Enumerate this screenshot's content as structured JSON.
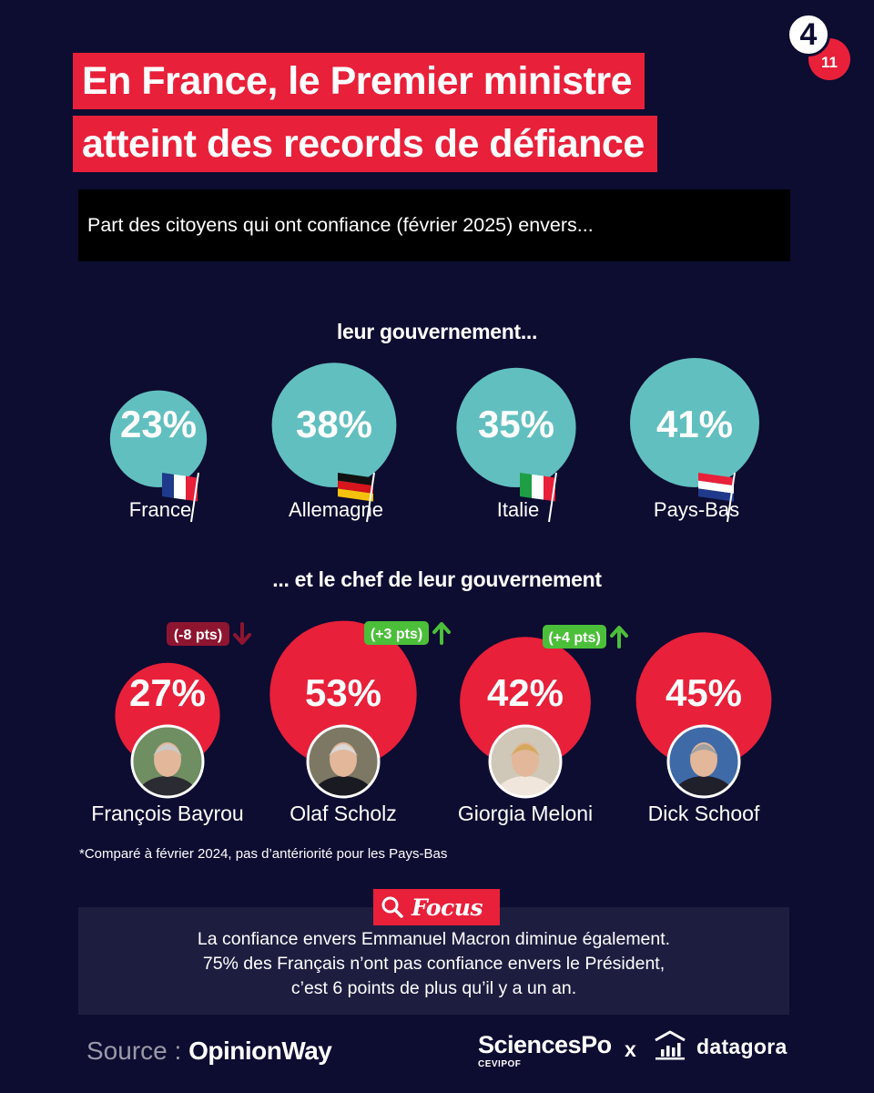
{
  "page": {
    "current": "4",
    "total": "11"
  },
  "title": {
    "line1": "En France, le Premier ministre",
    "line2": "atteint des records de défiance"
  },
  "subtitle": "Part des citoyens qui ont confiance (février 2025) envers...",
  "section_government": "leur gouvernement...",
  "section_leader": "... et le chef de leur gouvernement",
  "footnote": "*Comparé à février 2024, pas d’antériorité pour les Pays-Bas",
  "focus": {
    "label": "Focus",
    "line1": "La confiance envers Emmanuel Macron diminue également.",
    "line2": "75% des Français n’ont pas confiance envers le Président,",
    "line3": "c’est 6 points de plus qu’il y a un an."
  },
  "footer": {
    "source_prefix": "Source :",
    "source_org": "OpinionWay",
    "partner1": "SciencesPo",
    "partner1_sub": "CEVIPOF",
    "separator": "x",
    "partner2": "datagora"
  },
  "colors": {
    "background": "#0d0c31",
    "accent_red": "#e8203a",
    "teal": "#62bfbf",
    "green": "#4bbf39",
    "dark_red": "#8e1530"
  },
  "chart_data": [
    {
      "type": "bubble",
      "title": "leur gouvernement...",
      "unit": "%",
      "categories": [
        "France",
        "Allemagne",
        "Italie",
        "Pays-Bas"
      ],
      "values": [
        23,
        38,
        35,
        41
      ],
      "labels": [
        "23%",
        "38%",
        "35%",
        "41%"
      ],
      "flags": [
        "flag-france-icon",
        "flag-germany-icon",
        "flag-italy-icon",
        "flag-netherlands-icon"
      ]
    },
    {
      "type": "bubble",
      "title": "... et le chef de leur gouvernement",
      "unit": "%",
      "categories": [
        "France",
        "Allemagne",
        "Italie",
        "Pays-Bas"
      ],
      "leaders": [
        "François Bayrou",
        "Olaf Scholz",
        "Giorgia Meloni",
        "Dick Schoof"
      ],
      "values": [
        27,
        53,
        42,
        45
      ],
      "labels": [
        "27%",
        "53%",
        "42%",
        "45%"
      ],
      "change_vs_feb_2024": [
        -8,
        3,
        4,
        null
      ],
      "change_labels": [
        "(-8 pts)",
        "(+3 pts)",
        "(+4 pts)",
        null
      ]
    }
  ]
}
